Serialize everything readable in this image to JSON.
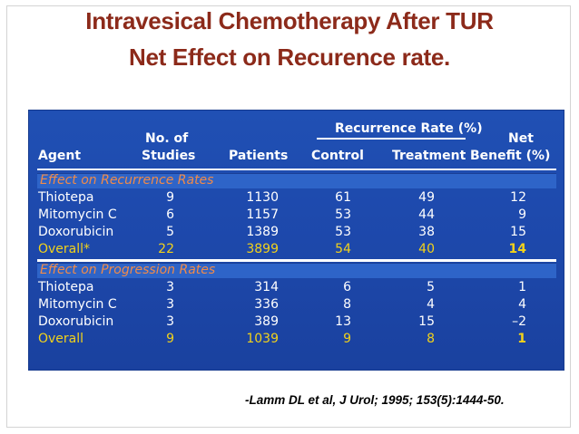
{
  "title": {
    "line1": "Intravesical Chemotherapy After TUR",
    "line2": "Net Effect on Recurence rate."
  },
  "table": {
    "headers": {
      "agent": "Agent",
      "studies_line1": "No. of",
      "studies_line2": "Studies",
      "patients": "Patients",
      "recurrence_rate": "Recurrence Rate (%)",
      "control": "Control",
      "treatment": "Treatment",
      "benefit_line1": "Net",
      "benefit_line2": "Benefit (%)"
    },
    "sections": [
      {
        "label": "Effect on Recurrence Rates",
        "rows": [
          {
            "agent": "Thiotepa",
            "studies": "9",
            "patients": "1130",
            "control": "61",
            "treatment": "49",
            "benefit": "12",
            "overall": false
          },
          {
            "agent": "Mitomycin C",
            "studies": "6",
            "patients": "1157",
            "control": "53",
            "treatment": "44",
            "benefit": "9",
            "overall": false
          },
          {
            "agent": "Doxorubicin",
            "studies": "5",
            "patients": "1389",
            "control": "53",
            "treatment": "38",
            "benefit": "15",
            "overall": false
          },
          {
            "agent": "Overall*",
            "studies": "22",
            "patients": "3899",
            "control": "54",
            "treatment": "40",
            "benefit": "14",
            "overall": true
          }
        ]
      },
      {
        "label": "Effect on Progression Rates",
        "rows": [
          {
            "agent": "Thiotepa",
            "studies": "3",
            "patients": "314",
            "control": "6",
            "treatment": "5",
            "benefit": "1",
            "overall": false
          },
          {
            "agent": "Mitomycin C",
            "studies": "3",
            "patients": "336",
            "control": "8",
            "treatment": "4",
            "benefit": "4",
            "overall": false
          },
          {
            "agent": "Doxorubicin",
            "studies": "3",
            "patients": "389",
            "control": "13",
            "treatment": "15",
            "benefit": "–2",
            "overall": false
          },
          {
            "agent": "Overall",
            "studies": "9",
            "patients": "1039",
            "control": "9",
            "treatment": "8",
            "benefit": "1",
            "overall": true
          }
        ]
      }
    ]
  },
  "citation": "-Lamm DL et al, J Urol; 1995; 153(5):1444-50.",
  "colors": {
    "title": "#8c2a1a",
    "panel": "#1e47a8",
    "section_band": "#2e64c8",
    "section_text": "#f08a4a",
    "overall_text": "#f2d21a"
  }
}
